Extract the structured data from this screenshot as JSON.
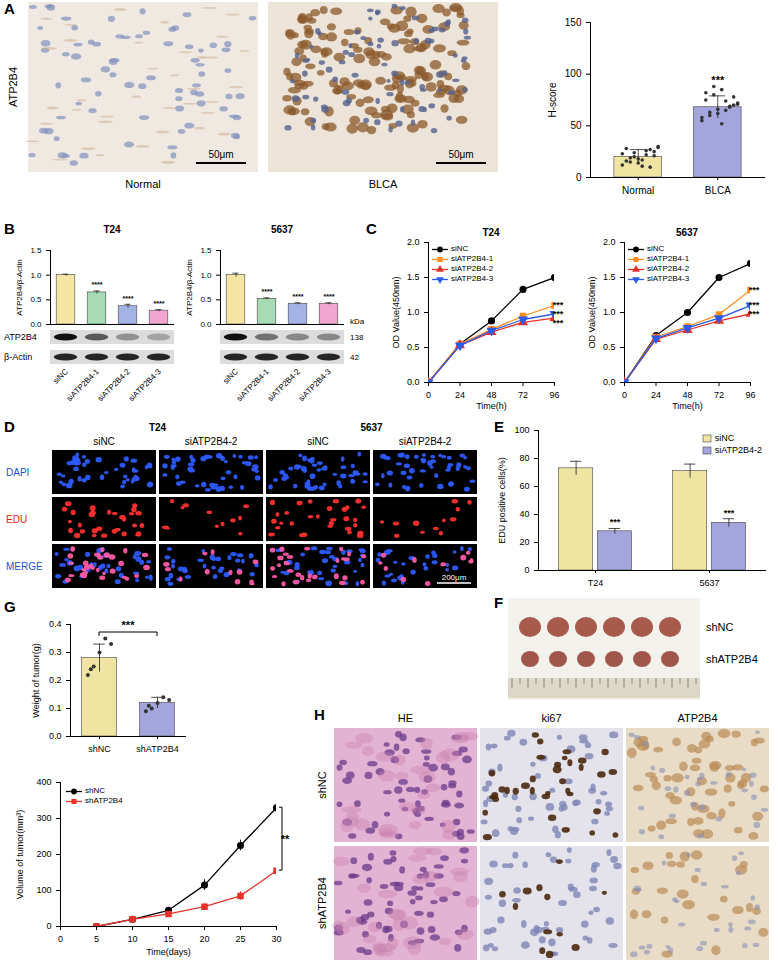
{
  "panel_labels": [
    "A",
    "B",
    "C",
    "D",
    "E",
    "F",
    "G",
    "H"
  ],
  "images": {
    "A": {
      "row_label": "ATP2B4",
      "columns": [
        "Normal",
        "BLCA"
      ],
      "scale_bar": "50μm"
    },
    "B": {
      "rows": [
        {
          "label": "ATP2B4",
          "kda": 138
        },
        {
          "label": "β-Actin",
          "kda": 42
        }
      ],
      "unit": "kDa"
    },
    "D": {
      "groups": [
        "T24",
        "5637"
      ],
      "columns": [
        "siNC",
        "siATP2B4-2"
      ],
      "rows": [
        "DAPI",
        "EDU",
        "MERGE"
      ],
      "scale_bar": "200μm"
    },
    "F": {
      "rows": [
        "shNC",
        "shATP2B4"
      ]
    },
    "H": {
      "columns": [
        "HE",
        "ki67",
        "ATP2B4"
      ],
      "rows": [
        "shNC",
        "shATP2B4"
      ]
    }
  },
  "chart_data": [
    {
      "type": "bar",
      "categories": [
        "Normal",
        "BLCA"
      ],
      "values": [
        20,
        68
      ],
      "errors": [
        7,
        11
      ],
      "points": [
        [
          12,
          15,
          18,
          22,
          25,
          28,
          20,
          17,
          10,
          30,
          23,
          19,
          14,
          26,
          21,
          16,
          24,
          11,
          27,
          29
        ],
        [
          55,
          60,
          62,
          65,
          70,
          75,
          80,
          85,
          68,
          72,
          58,
          63,
          66,
          74,
          78,
          82,
          88,
          52,
          69,
          71
        ]
      ],
      "colors": [
        "#f0e4a2",
        "#a3a5dc"
      ],
      "y_label": "H-score",
      "ylim": [
        0,
        150
      ],
      "yticks": [
        0,
        50,
        100,
        150
      ],
      "significance": [
        null,
        "***"
      ]
    },
    {
      "type": "bar",
      "title": "T24",
      "categories": [
        "siNC",
        "siATP2B4-1",
        "siATP2B4-2",
        "siATP2B4-3"
      ],
      "values": [
        1.0,
        0.65,
        0.37,
        0.28
      ],
      "errors": [
        0.02,
        0.03,
        0.04,
        0.02
      ],
      "colors": [
        "#f5e5a3",
        "#a6dbb3",
        "#a3b3e6",
        "#f0a6d0"
      ],
      "y_label": "ATP2B4/β-Actin",
      "ylim": [
        0,
        1.5
      ],
      "yticks": [
        {
          "value": 0,
          "label": "0.0"
        },
        {
          "value": 0.5,
          "label": "0.5"
        },
        {
          "value": 1,
          "label": "1.0"
        },
        {
          "value": 1.5,
          "label": "1.5"
        }
      ],
      "tick_labels": "y",
      "significance": [
        null,
        "****",
        "****",
        "****"
      ]
    },
    {
      "type": "bar",
      "title": "5637",
      "categories": [
        "siNC",
        "siATP2B4-1",
        "siATP2B4-2",
        "siATP2B4-3"
      ],
      "values": [
        1.0,
        0.52,
        0.42,
        0.42
      ],
      "errors": [
        0.04,
        0.02,
        0.02,
        0.02
      ],
      "colors": [
        "#f5e5a3",
        "#a6dbb3",
        "#a3b3e6",
        "#f0a6d0"
      ],
      "y_label": "ATP2B4/β-Actin",
      "ylim": [
        0,
        1.5
      ],
      "yticks": [
        {
          "value": 0,
          "label": "0.0"
        },
        {
          "value": 0.5,
          "label": "0.5"
        },
        {
          "value": 1,
          "label": "1.0"
        },
        {
          "value": 1.5,
          "label": "1.5"
        }
      ],
      "tick_labels": "y",
      "significance": [
        null,
        "****",
        "****",
        "****"
      ]
    },
    {
      "type": "line",
      "title": "T24",
      "x": [
        0,
        24,
        48,
        72,
        96
      ],
      "series": [
        {
          "name": "siNC",
          "color": "#000000",
          "marker": "circle",
          "values": [
            0,
            0.55,
            0.88,
            1.33,
            1.5
          ]
        },
        {
          "name": "siATP2B4-1",
          "color": "#ff8c1a",
          "marker": "square",
          "values": [
            0,
            0.55,
            0.76,
            0.95,
            1.1
          ]
        },
        {
          "name": "siATP2B4-2",
          "color": "#e8312a",
          "marker": "triangle",
          "values": [
            0,
            0.53,
            0.72,
            0.86,
            0.92
          ]
        },
        {
          "name": "siATP2B4-3",
          "color": "#2a5ce8",
          "marker": "triangle-down",
          "values": [
            0,
            0.53,
            0.74,
            0.9,
            0.98
          ]
        }
      ],
      "x_label": "Time(h)",
      "y_label": "OD Value(450nm)",
      "xlim": [
        0,
        96
      ],
      "xticks": [
        0,
        24,
        48,
        72,
        96
      ],
      "ylim": [
        0,
        2
      ],
      "yticks": [
        {
          "value": 0,
          "label": "0.0"
        },
        {
          "value": 0.5,
          "label": "0.5"
        },
        {
          "value": 1,
          "label": "1.0"
        },
        {
          "value": 1.5,
          "label": "1.5"
        },
        {
          "value": 2,
          "label": "2.0"
        }
      ],
      "legend": "top-left",
      "significance": [
        null,
        "***",
        "***",
        "***"
      ]
    },
    {
      "type": "line",
      "title": "5637",
      "x": [
        0,
        24,
        48,
        72,
        96
      ],
      "series": [
        {
          "name": "siNC",
          "color": "#000000",
          "marker": "circle",
          "values": [
            0,
            0.67,
            1.0,
            1.5,
            1.7
          ]
        },
        {
          "name": "siATP2B4-1",
          "color": "#ff8c1a",
          "marker": "square",
          "values": [
            0,
            0.65,
            0.8,
            0.97,
            1.32
          ]
        },
        {
          "name": "siATP2B4-2",
          "color": "#e8312a",
          "marker": "triangle",
          "values": [
            0,
            0.62,
            0.75,
            0.88,
            0.98
          ]
        },
        {
          "name": "siATP2B4-3",
          "color": "#2a5ce8",
          "marker": "triangle-down",
          "values": [
            0,
            0.63,
            0.78,
            0.92,
            1.1
          ]
        }
      ],
      "x_label": "Time(h)",
      "y_label": "OD Value(450nm)",
      "xlim": [
        0,
        96
      ],
      "xticks": [
        0,
        24,
        48,
        72,
        96
      ],
      "ylim": [
        0,
        2
      ],
      "yticks": [
        {
          "value": 0,
          "label": "0.0"
        },
        {
          "value": 0.5,
          "label": "0.5"
        },
        {
          "value": 1,
          "label": "1.0"
        },
        {
          "value": 1.5,
          "label": "1.5"
        },
        {
          "value": 2,
          "label": "2.0"
        }
      ],
      "legend": "top-left",
      "significance": [
        null,
        "***",
        "***",
        "***"
      ]
    },
    {
      "type": "bar",
      "categories": [
        "T24",
        "5637"
      ],
      "series": [
        {
          "name": "siNC",
          "color": "#f0e4a2",
          "values": [
            73,
            71
          ],
          "errors": [
            5,
            5
          ]
        },
        {
          "name": "siATP2B4-2",
          "color": "#a3a5dc",
          "values": [
            28,
            34
          ],
          "errors": [
            2,
            3
          ],
          "significance": [
            "***",
            "***"
          ]
        }
      ],
      "y_label": "EDU positive cells(%)",
      "ylim": [
        0,
        100
      ],
      "yticks": [
        0,
        20,
        40,
        60,
        80,
        100
      ],
      "legend": "top-right"
    },
    {
      "type": "bar",
      "categories": [
        "shNC",
        "shATP2B4"
      ],
      "values": [
        0.28,
        0.12
      ],
      "errors": [
        0.05,
        0.02
      ],
      "points": [
        [
          0.22,
          0.25,
          0.3,
          0.35,
          0.33,
          0.24
        ],
        [
          0.09,
          0.1,
          0.12,
          0.14,
          0.13,
          0.11
        ]
      ],
      "colors": [
        "#f0e4a2",
        "#a3a5dc"
      ],
      "y_label": "Weight of tumor(g)",
      "ylim": [
        0,
        0.4
      ],
      "yticks": [
        {
          "value": 0,
          "label": "0.0"
        },
        {
          "value": 0.1,
          "label": "0.1"
        },
        {
          "value": 0.2,
          "label": "0.2"
        },
        {
          "value": 0.3,
          "label": "0.3"
        },
        {
          "value": 0.4,
          "label": "0.4"
        }
      ],
      "significance": "***"
    },
    {
      "type": "line",
      "x": [
        5,
        10,
        15,
        20,
        25,
        30
      ],
      "series": [
        {
          "name": "shNC",
          "color": "#000000",
          "marker": "circle",
          "values": [
            0,
            20,
            45,
            115,
            225,
            330
          ],
          "errors": [
            0,
            4,
            6,
            15,
            15,
            25
          ]
        },
        {
          "name": "shATP2B4",
          "color": "#e8312a",
          "marker": "square",
          "values": [
            0,
            20,
            35,
            55,
            85,
            155
          ],
          "errors": [
            0,
            3,
            5,
            8,
            12,
            25
          ]
        }
      ],
      "x_label": "Time(days)",
      "y_label": "Volume of tumor(mm³)",
      "xlim": [
        0,
        30
      ],
      "xticks": [
        0,
        5,
        10,
        15,
        20,
        25,
        30
      ],
      "ylim": [
        0,
        400
      ],
      "yticks": [
        0,
        100,
        200,
        300,
        400
      ],
      "legend": "top-left",
      "significance": "**"
    }
  ]
}
